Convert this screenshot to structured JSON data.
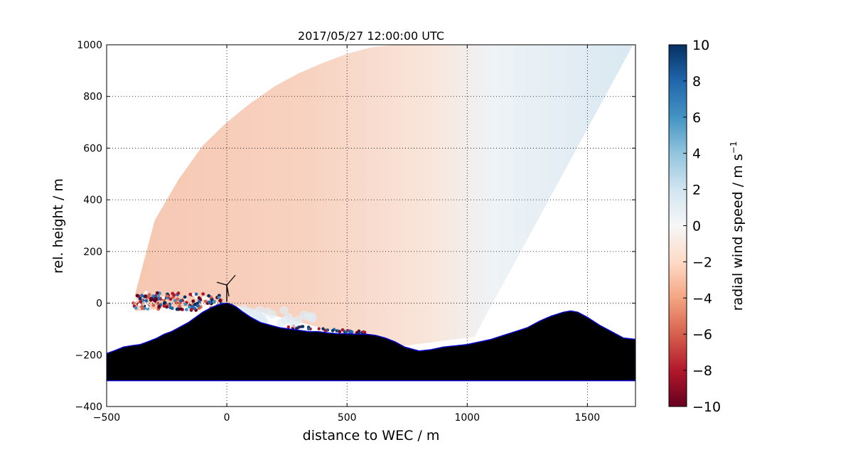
{
  "chart_data": {
    "type": "heatmap",
    "title": "2017/05/27 12:00:00 UTC",
    "xlabel": "distance to WEC / m",
    "ylabel": "rel. height / m",
    "xlim": [
      -500,
      1700
    ],
    "ylim": [
      -400,
      1000
    ],
    "xticks": [
      -500,
      0,
      500,
      1000,
      1500
    ],
    "yticks": [
      -400,
      -200,
      0,
      200,
      400,
      600,
      800,
      1000
    ],
    "grid": true,
    "colorbar": {
      "label": "radial wind speed / m s",
      "label_superscript": "−1",
      "min": -10,
      "max": 10,
      "ticks": [
        10,
        8,
        6,
        4,
        2,
        0,
        -2,
        -4,
        -6,
        -8,
        -10
      ],
      "colormap": "RdBu",
      "colors": [
        "#67001f",
        "#b2182b",
        "#d6604d",
        "#f4a582",
        "#fddbc7",
        "#f7f7f7",
        "#d1e5f0",
        "#92c5de",
        "#4393c3",
        "#2166ac",
        "#053061"
      ]
    },
    "terrain": {
      "x": [
        -500,
        -470,
        -430,
        -400,
        -360,
        -330,
        -290,
        -260,
        -230,
        -200,
        -160,
        -130,
        -100,
        -80,
        -60,
        -40,
        -20,
        0,
        20,
        40,
        60,
        100,
        140,
        180,
        220,
        260,
        300,
        340,
        380,
        420,
        460,
        500,
        540,
        580,
        620,
        660,
        700,
        740,
        800,
        850,
        900,
        950,
        1000,
        1050,
        1100,
        1150,
        1200,
        1250,
        1300,
        1350,
        1400,
        1430,
        1460,
        1500,
        1550,
        1600,
        1650,
        1700
      ],
      "y": [
        -195,
        -185,
        -170,
        -165,
        -160,
        -150,
        -135,
        -120,
        -110,
        -95,
        -75,
        -55,
        -35,
        -25,
        -15,
        -8,
        -3,
        0,
        -5,
        -15,
        -30,
        -55,
        -75,
        -85,
        -95,
        -100,
        -105,
        -110,
        -110,
        -115,
        -118,
        -118,
        -120,
        -120,
        -125,
        -135,
        -150,
        -170,
        -185,
        -180,
        -170,
        -165,
        -160,
        -150,
        -140,
        -125,
        -110,
        -95,
        -70,
        -50,
        -35,
        -30,
        -35,
        -55,
        -85,
        -110,
        -135,
        -140
      ],
      "base": -300,
      "fill_color": "#000000",
      "outline_color": "#0000cc"
    },
    "scan_field": {
      "description_values": "radial wind speed field sector; lower-left region about -2 m/s, right region about +1 m/s",
      "upper_boundary_x": [
        -380,
        -300,
        -200,
        -100,
        0,
        100,
        200,
        300,
        400,
        500,
        600,
        700,
        800,
        900,
        1000,
        1100,
        1200,
        1300,
        1400,
        1500,
        1600,
        1690
      ],
      "upper_boundary_y": [
        40,
        320,
        480,
        610,
        700,
        775,
        840,
        890,
        930,
        965,
        990,
        1000,
        1000,
        1000,
        1000,
        1000,
        1000,
        1000,
        1000,
        1000,
        1000,
        1000
      ],
      "right_edge": [
        [
          1690,
          1000
        ],
        [
          1030,
          -130
        ]
      ],
      "value_left": -2.2,
      "value_mid": -1.2,
      "value_right": 1.2
    },
    "wec": {
      "x": 0,
      "hub_height": 80,
      "label": ""
    }
  }
}
